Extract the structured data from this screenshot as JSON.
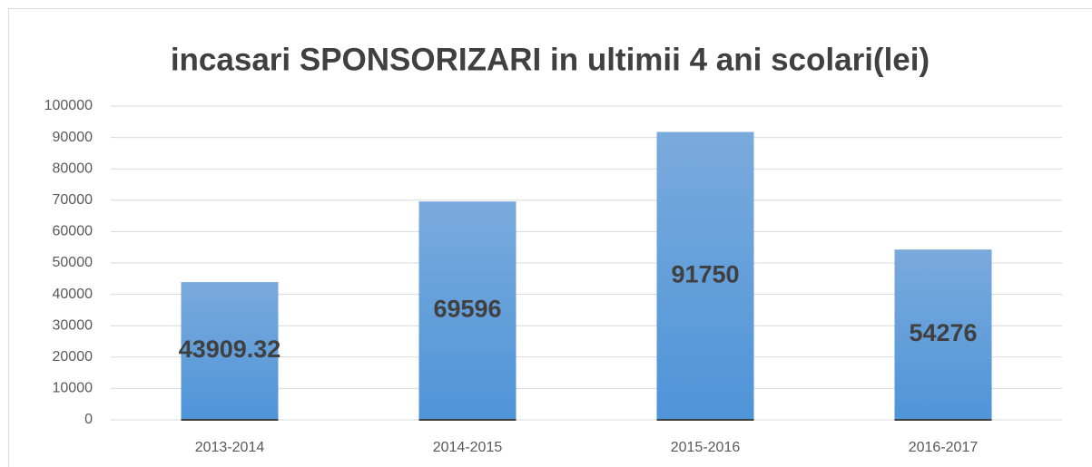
{
  "chart_data": {
    "type": "bar",
    "title": "incasari SPONSORIZARI in ultimii 4 ani scolari(lei)",
    "categories": [
      "2013-2014",
      "2014-2015",
      "2015-2016",
      "2016-2017"
    ],
    "values": [
      43909.32,
      69596,
      91750,
      54276
    ],
    "color": "#5b9bd5",
    "ylim": [
      0,
      100000
    ],
    "yticks": [
      0,
      10000,
      20000,
      30000,
      40000,
      50000,
      60000,
      70000,
      80000,
      90000,
      100000
    ],
    "grid": true,
    "data_labels": true
  }
}
